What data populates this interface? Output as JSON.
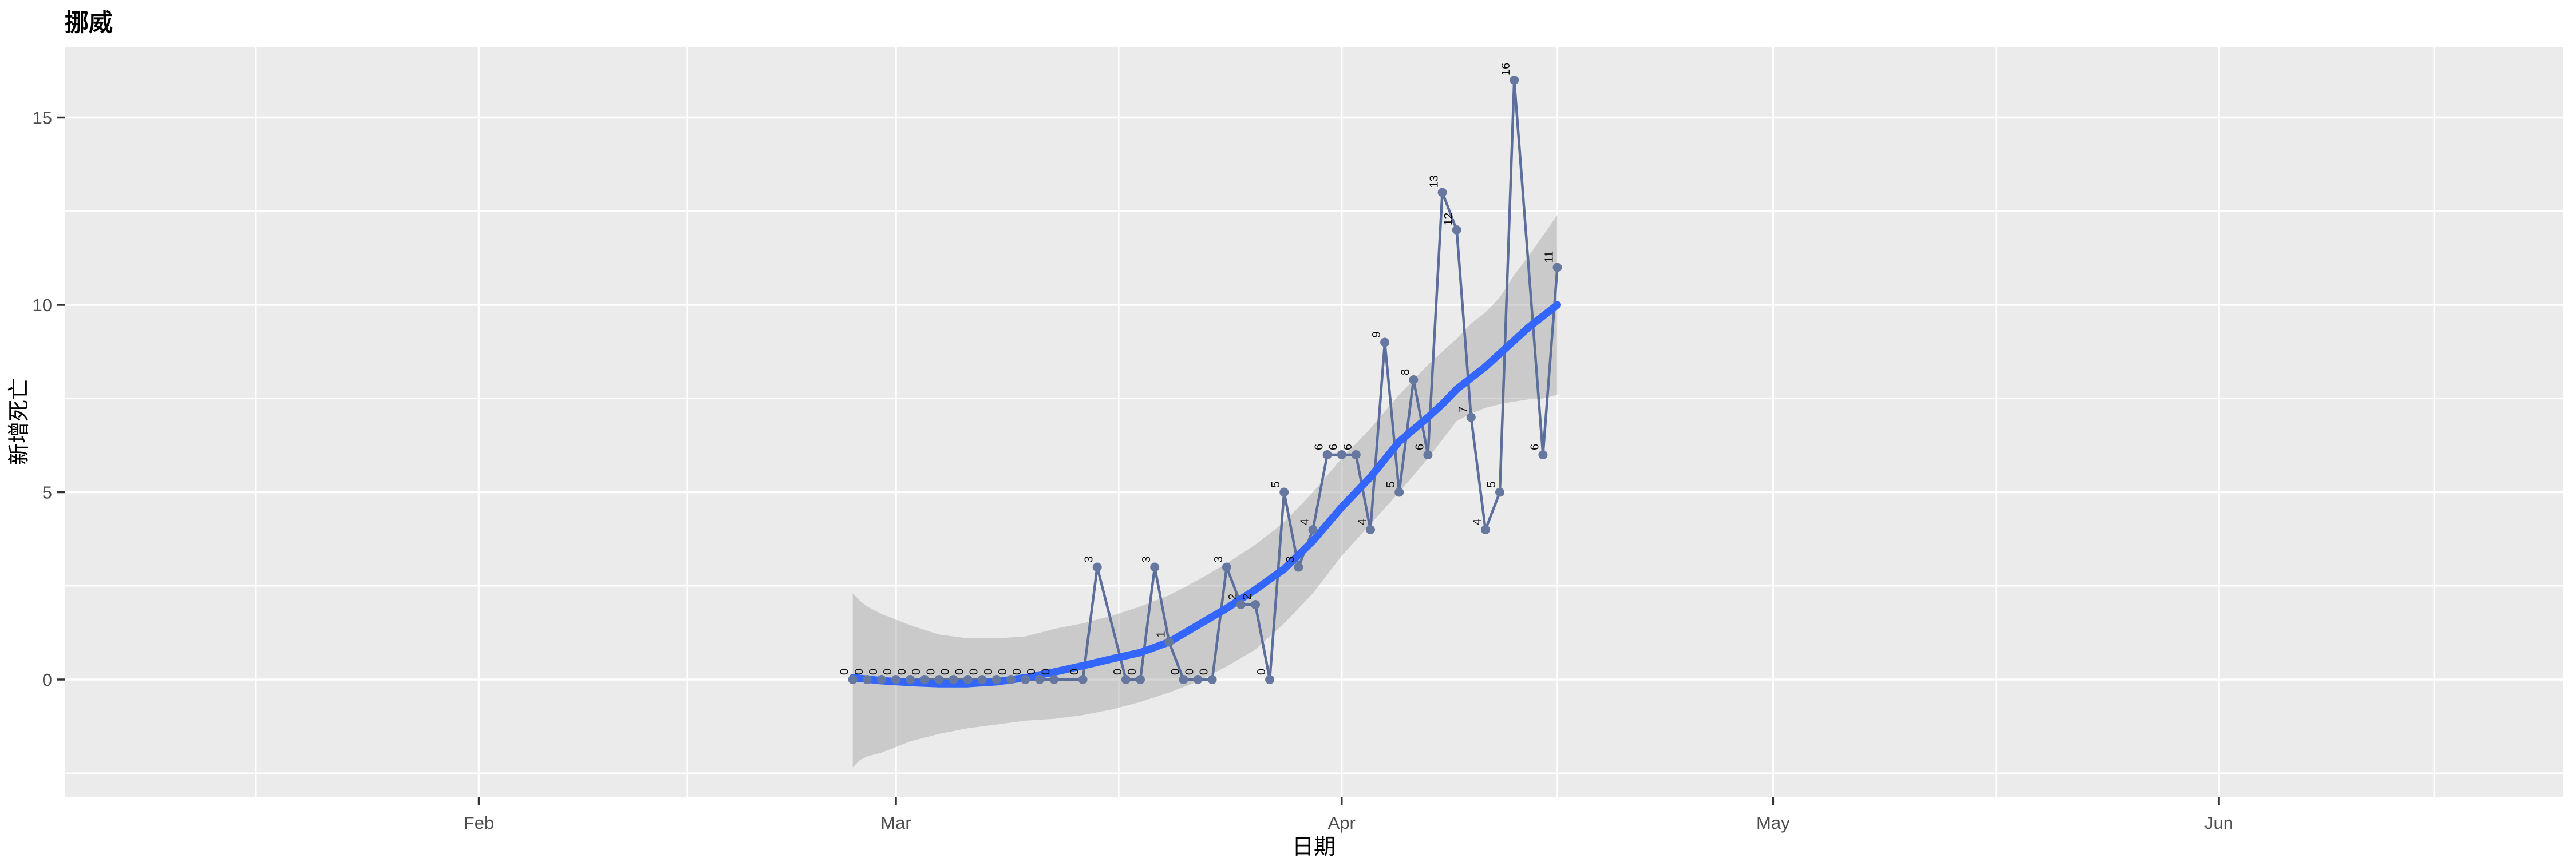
{
  "title": "挪威",
  "axes": {
    "x": {
      "title": "日期",
      "tick_labels": [
        "Feb",
        "Mar",
        "Apr",
        "May",
        "Jun"
      ],
      "tick_days": [
        -29,
        0,
        31,
        61,
        92
      ],
      "minor_days": [
        -44.5,
        -14.5,
        15.5,
        46,
        76.5,
        107
      ]
    },
    "y": {
      "title": "新增死亡",
      "tick_values": [
        0,
        5,
        10,
        15
      ],
      "minor_values": [
        -2.5,
        2.5,
        7.5,
        12.5
      ]
    }
  },
  "colors": {
    "background": "#FFFFFF",
    "panel": "#EBEBEB",
    "grid": "#FFFFFF",
    "tick_mark": "#333333",
    "tick_text": "#4D4D4D",
    "title_text": "#000000",
    "label_text": "#0A0A0A",
    "series_line": "#5C6F9C",
    "point_fill": "#66789F",
    "smooth_line": "#3366FF",
    "ribbon_fill": "#999999",
    "ribbon_opacity": 0.4
  },
  "chart_data": {
    "type": "line",
    "title": "挪威",
    "xlabel": "日期",
    "ylabel": "新增死亡",
    "x_axis_range": [
      "2020-01-03",
      "2020-06-26"
    ],
    "ylim": [
      -3.1,
      16.9
    ],
    "y_ticks": [
      0,
      5,
      10,
      15
    ],
    "x_tick_labels": [
      "Feb",
      "Mar",
      "Apr",
      "May",
      "Jun"
    ],
    "grid": true,
    "legend": "none",
    "series_note": "Daily new COVID-19 deaths in Norway; points labelled with values (labels rotated 90°); blue loess smooth with grey 95% CI ribbon; dates 2020-03-13, 2020-03-16 and 2020-04-14 absent from data",
    "points": [
      {
        "date": "2020-02-27",
        "value": 0
      },
      {
        "date": "2020-02-28",
        "value": 0
      },
      {
        "date": "2020-02-29",
        "value": 0
      },
      {
        "date": "2020-03-01",
        "value": 0
      },
      {
        "date": "2020-03-02",
        "value": 0
      },
      {
        "date": "2020-03-03",
        "value": 0
      },
      {
        "date": "2020-03-04",
        "value": 0
      },
      {
        "date": "2020-03-05",
        "value": 0
      },
      {
        "date": "2020-03-06",
        "value": 0
      },
      {
        "date": "2020-03-07",
        "value": 0
      },
      {
        "date": "2020-03-08",
        "value": 0
      },
      {
        "date": "2020-03-09",
        "value": 0
      },
      {
        "date": "2020-03-10",
        "value": 0
      },
      {
        "date": "2020-03-11",
        "value": 0
      },
      {
        "date": "2020-03-12",
        "value": 0
      },
      {
        "date": "2020-03-14",
        "value": 0
      },
      {
        "date": "2020-03-15",
        "value": 3
      },
      {
        "date": "2020-03-17",
        "value": 0
      },
      {
        "date": "2020-03-18",
        "value": 0
      },
      {
        "date": "2020-03-19",
        "value": 3
      },
      {
        "date": "2020-03-20",
        "value": 1
      },
      {
        "date": "2020-03-21",
        "value": 0
      },
      {
        "date": "2020-03-22",
        "value": 0
      },
      {
        "date": "2020-03-23",
        "value": 0
      },
      {
        "date": "2020-03-24",
        "value": 3
      },
      {
        "date": "2020-03-25",
        "value": 2
      },
      {
        "date": "2020-03-26",
        "value": 2
      },
      {
        "date": "2020-03-27",
        "value": 0
      },
      {
        "date": "2020-03-28",
        "value": 5
      },
      {
        "date": "2020-03-29",
        "value": 3
      },
      {
        "date": "2020-03-30",
        "value": 4
      },
      {
        "date": "2020-03-31",
        "value": 6
      },
      {
        "date": "2020-04-01",
        "value": 6
      },
      {
        "date": "2020-04-02",
        "value": 6
      },
      {
        "date": "2020-04-03",
        "value": 4
      },
      {
        "date": "2020-04-04",
        "value": 9
      },
      {
        "date": "2020-04-05",
        "value": 5
      },
      {
        "date": "2020-04-06",
        "value": 8
      },
      {
        "date": "2020-04-07",
        "value": 6
      },
      {
        "date": "2020-04-08",
        "value": 13
      },
      {
        "date": "2020-04-09",
        "value": 12
      },
      {
        "date": "2020-04-10",
        "value": 7
      },
      {
        "date": "2020-04-11",
        "value": 4
      },
      {
        "date": "2020-04-12",
        "value": 5
      },
      {
        "date": "2020-04-13",
        "value": 16
      },
      {
        "date": "2020-04-15",
        "value": 6
      },
      {
        "date": "2020-04-16",
        "value": 11
      }
    ],
    "smooth_line_day_value": [
      [
        -3,
        0.05
      ],
      [
        -1,
        -0.03
      ],
      [
        1,
        -0.08
      ],
      [
        3,
        -0.11
      ],
      [
        5,
        -0.11
      ],
      [
        7,
        -0.06
      ],
      [
        9,
        0.05
      ],
      [
        11,
        0.2
      ],
      [
        13,
        0.37
      ],
      [
        15,
        0.55
      ],
      [
        17,
        0.72
      ],
      [
        19,
        1.0
      ],
      [
        21,
        1.45
      ],
      [
        23,
        1.9
      ],
      [
        25,
        2.4
      ],
      [
        27,
        2.95
      ],
      [
        29,
        3.7
      ],
      [
        31,
        4.6
      ],
      [
        33,
        5.4
      ],
      [
        35,
        6.35
      ],
      [
        37,
        7.0
      ],
      [
        38,
        7.35
      ],
      [
        39,
        7.75
      ],
      [
        40,
        8.05
      ],
      [
        41,
        8.35
      ],
      [
        42,
        8.7
      ],
      [
        43,
        9.05
      ],
      [
        44,
        9.4
      ],
      [
        45,
        9.7
      ],
      [
        46,
        10.0
      ]
    ],
    "ribbon_upper_day_value": [
      [
        -3,
        2.3
      ],
      [
        -2.5,
        2.1
      ],
      [
        -2,
        1.95
      ],
      [
        -1,
        1.75
      ],
      [
        1,
        1.45
      ],
      [
        3,
        1.2
      ],
      [
        5,
        1.1
      ],
      [
        7,
        1.1
      ],
      [
        9,
        1.15
      ],
      [
        11,
        1.35
      ],
      [
        13,
        1.5
      ],
      [
        15,
        1.7
      ],
      [
        17,
        1.95
      ],
      [
        19,
        2.25
      ],
      [
        21,
        2.65
      ],
      [
        23,
        3.1
      ],
      [
        25,
        3.6
      ],
      [
        27,
        4.2
      ],
      [
        29,
        5.0
      ],
      [
        31,
        5.9
      ],
      [
        33,
        6.7
      ],
      [
        35,
        7.6
      ],
      [
        37,
        8.4
      ],
      [
        39,
        9.1
      ],
      [
        40,
        9.5
      ],
      [
        41,
        9.8
      ],
      [
        42,
        10.2
      ],
      [
        43,
        10.8
      ],
      [
        44,
        11.3
      ],
      [
        45,
        11.85
      ],
      [
        46,
        12.4
      ]
    ],
    "ribbon_lower_day_value": [
      [
        -3,
        -2.35
      ],
      [
        -2.5,
        -2.15
      ],
      [
        -2,
        -2.05
      ],
      [
        -1,
        -1.95
      ],
      [
        1,
        -1.65
      ],
      [
        3,
        -1.45
      ],
      [
        5,
        -1.3
      ],
      [
        7,
        -1.2
      ],
      [
        9,
        -1.1
      ],
      [
        11,
        -1.05
      ],
      [
        13,
        -0.95
      ],
      [
        15,
        -0.8
      ],
      [
        17,
        -0.6
      ],
      [
        19,
        -0.35
      ],
      [
        21,
        -0.05
      ],
      [
        23,
        0.35
      ],
      [
        25,
        0.8
      ],
      [
        27,
        1.5
      ],
      [
        29,
        2.3
      ],
      [
        31,
        3.3
      ],
      [
        33,
        4.15
      ],
      [
        35,
        5.0
      ],
      [
        37,
        5.9
      ],
      [
        39,
        6.9
      ],
      [
        40,
        7.1
      ],
      [
        41,
        7.25
      ],
      [
        42,
        7.35
      ],
      [
        43,
        7.42
      ],
      [
        44,
        7.48
      ],
      [
        45,
        7.5
      ],
      [
        46,
        7.6
      ]
    ]
  }
}
